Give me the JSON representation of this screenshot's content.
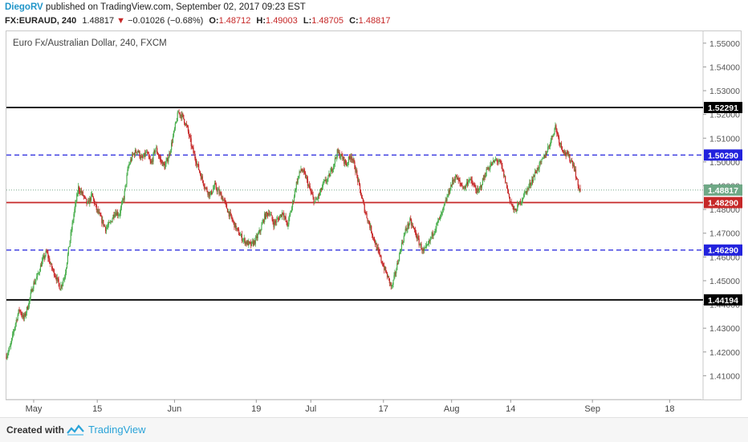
{
  "header": {
    "author": "DiegoRV",
    "published_text": "published on TradingView.com, September 02, 2017 09:23 EST",
    "symbol": "FX:EURAUD, 240",
    "last": "1.48817",
    "change": "−0.01026 (−0.68%)",
    "open_label": "O:",
    "open": "1.48712",
    "high_label": "H:",
    "high": "1.49003",
    "low_label": "L:",
    "low": "1.48705",
    "close_label": "C:",
    "close": "1.48817"
  },
  "chart_title": "Euro Fx/Australian Dollar, 240, FXCM",
  "footer": {
    "created_with": "Created with",
    "brand": "TradingView"
  },
  "colors": {
    "up": "#4caf50",
    "down": "#c62828",
    "dashed": "#2222dd",
    "support": "#c62828",
    "black": "#000000",
    "last": "#6fa886"
  },
  "chart_data": {
    "type": "line",
    "y_axis_side": "right",
    "ylim": [
      1.4,
      1.555
    ],
    "y_ticks": [
      "1.55000",
      "1.54000",
      "1.53000",
      "1.52000",
      "1.51000",
      "1.50000",
      "1.49000",
      "1.48000",
      "1.47000",
      "1.46000",
      "1.45000",
      "1.44000",
      "1.43000",
      "1.42000",
      "1.41000"
    ],
    "x_ticks": [
      {
        "label": "May",
        "day": 1
      },
      {
        "label": "15",
        "day": 15
      },
      {
        "label": "Jun",
        "day": 32
      },
      {
        "label": "19",
        "day": 50
      },
      {
        "label": "Jul",
        "day": 62
      },
      {
        "label": "17",
        "day": 78
      },
      {
        "label": "Aug",
        "day": 93
      },
      {
        "label": "14",
        "day": 106
      },
      {
        "label": "Sep",
        "day": 124
      },
      {
        "label": "18",
        "day": 141
      }
    ],
    "xlim": [
      -5,
      148
    ],
    "horizontal_lines": [
      {
        "value": 1.52291,
        "label": "1.52291",
        "style": "solid",
        "color": "#000000",
        "tag": "#000000"
      },
      {
        "value": 1.5029,
        "label": "1.50290",
        "style": "dashed",
        "color": "#2222dd",
        "tag": "#2222dd"
      },
      {
        "value": 1.4829,
        "label": "1.48290",
        "style": "solid",
        "color": "#c62828",
        "tag": "#c62828"
      },
      {
        "value": 1.4629,
        "label": "1.46290",
        "style": "dashed",
        "color": "#2222dd",
        "tag": "#2222dd"
      },
      {
        "value": 1.44194,
        "label": "1.44194",
        "style": "solid",
        "color": "#000000",
        "tag": "#000000"
      }
    ],
    "last_price": {
      "value": 1.48817,
      "label": "1.48817"
    },
    "series": [
      {
        "path": [
          [
            -5,
            1.418
          ],
          [
            -4,
            1.422
          ],
          [
            -3,
            1.431
          ],
          [
            -2,
            1.438
          ],
          [
            -1,
            1.434
          ],
          [
            0,
            1.44
          ],
          [
            1,
            1.448
          ],
          [
            2,
            1.452
          ],
          [
            3,
            1.458
          ],
          [
            4,
            1.462
          ],
          [
            5,
            1.456
          ],
          [
            6,
            1.452
          ],
          [
            7,
            1.447
          ],
          [
            8,
            1.452
          ],
          [
            9,
            1.465
          ],
          [
            10,
            1.478
          ],
          [
            11,
            1.489
          ],
          [
            12,
            1.486
          ],
          [
            13,
            1.482
          ],
          [
            14,
            1.486
          ],
          [
            15,
            1.48
          ],
          [
            16,
            1.476
          ],
          [
            17,
            1.472
          ],
          [
            18,
            1.474
          ],
          [
            19,
            1.479
          ],
          [
            20,
            1.478
          ],
          [
            21,
            1.485
          ],
          [
            22,
            1.498
          ],
          [
            23,
            1.503
          ],
          [
            24,
            1.505
          ],
          [
            25,
            1.501
          ],
          [
            26,
            1.504
          ],
          [
            27,
            1.499
          ],
          [
            28,
            1.506
          ],
          [
            29,
            1.501
          ],
          [
            30,
            1.498
          ],
          [
            31,
            1.503
          ],
          [
            32,
            1.512
          ],
          [
            33,
            1.521
          ],
          [
            34,
            1.519
          ],
          [
            35,
            1.514
          ],
          [
            36,
            1.506
          ],
          [
            37,
            1.5
          ],
          [
            38,
            1.494
          ],
          [
            39,
            1.489
          ],
          [
            40,
            1.486
          ],
          [
            41,
            1.49
          ],
          [
            42,
            1.487
          ],
          [
            43,
            1.484
          ],
          [
            44,
            1.479
          ],
          [
            45,
            1.475
          ],
          [
            46,
            1.471
          ],
          [
            47,
            1.468
          ],
          [
            48,
            1.466
          ],
          [
            49,
            1.465
          ],
          [
            50,
            1.467
          ],
          [
            51,
            1.471
          ],
          [
            52,
            1.477
          ],
          [
            53,
            1.479
          ],
          [
            54,
            1.474
          ],
          [
            55,
            1.476
          ],
          [
            56,
            1.479
          ],
          [
            57,
            1.473
          ],
          [
            58,
            1.481
          ],
          [
            59,
            1.491
          ],
          [
            60,
            1.497
          ],
          [
            61,
            1.494
          ],
          [
            62,
            1.488
          ],
          [
            63,
            1.483
          ],
          [
            64,
            1.486
          ],
          [
            65,
            1.491
          ],
          [
            66,
            1.493
          ],
          [
            67,
            1.498
          ],
          [
            68,
            1.504
          ],
          [
            69,
            1.502
          ],
          [
            70,
            1.499
          ],
          [
            71,
            1.503
          ],
          [
            72,
            1.497
          ],
          [
            73,
            1.488
          ],
          [
            74,
            1.48
          ],
          [
            75,
            1.474
          ],
          [
            76,
            1.468
          ],
          [
            77,
            1.462
          ],
          [
            78,
            1.457
          ],
          [
            79,
            1.452
          ],
          [
            80,
            1.447
          ],
          [
            81,
            1.455
          ],
          [
            82,
            1.464
          ],
          [
            83,
            1.471
          ],
          [
            84,
            1.475
          ],
          [
            85,
            1.471
          ],
          [
            86,
            1.466
          ],
          [
            87,
            1.462
          ],
          [
            88,
            1.465
          ],
          [
            89,
            1.47
          ],
          [
            90,
            1.474
          ],
          [
            91,
            1.478
          ],
          [
            92,
            1.484
          ],
          [
            93,
            1.49
          ],
          [
            94,
            1.494
          ],
          [
            95,
            1.491
          ],
          [
            96,
            1.489
          ],
          [
            97,
            1.493
          ],
          [
            98,
            1.49
          ],
          [
            99,
            1.487
          ],
          [
            100,
            1.492
          ],
          [
            101,
            1.497
          ],
          [
            102,
            1.499
          ],
          [
            103,
            1.501
          ],
          [
            104,
            1.499
          ],
          [
            105,
            1.492
          ],
          [
            106,
            1.484
          ],
          [
            107,
            1.479
          ],
          [
            108,
            1.482
          ],
          [
            109,
            1.486
          ],
          [
            110,
            1.489
          ],
          [
            111,
            1.493
          ],
          [
            112,
            1.497
          ],
          [
            113,
            1.5
          ],
          [
            114,
            1.504
          ],
          [
            115,
            1.509
          ],
          [
            116,
            1.515
          ],
          [
            117,
            1.508
          ],
          [
            118,
            1.504
          ],
          [
            119,
            1.502
          ],
          [
            120,
            1.499
          ],
          [
            121,
            1.49
          ],
          [
            121.4,
            1.48817
          ]
        ]
      }
    ]
  }
}
